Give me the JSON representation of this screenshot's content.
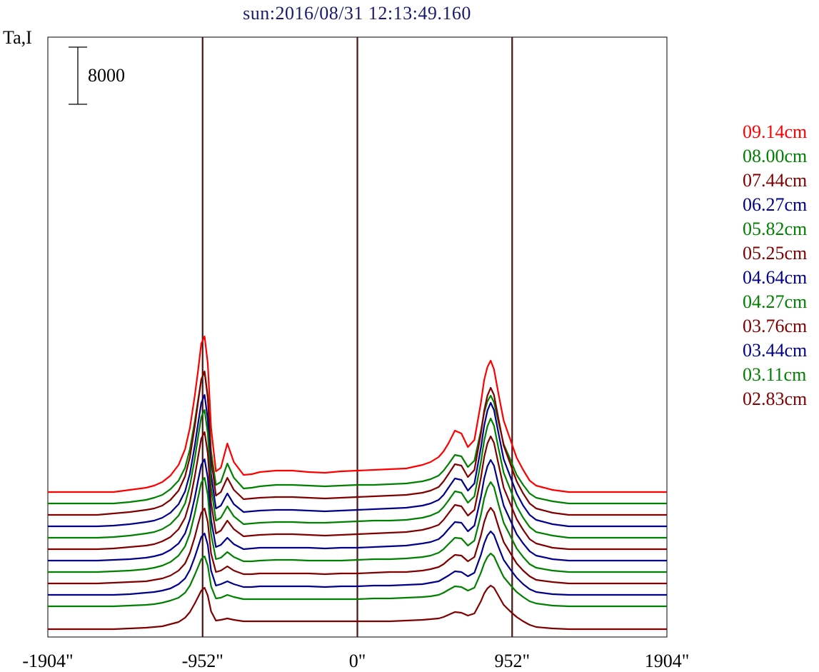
{
  "title": "sun:2016/08/31 12:13:49.160",
  "chart_data": {
    "type": "line",
    "title": "sun:2016/08/31 12:13:49.160",
    "ylabel": "Ta,I",
    "xlabel": "",
    "x_ticks": [
      "-1904\"",
      "-952\"",
      "0\"",
      "952\"",
      "1904\""
    ],
    "x_tick_values": [
      -1904,
      -952,
      0,
      952,
      1904
    ],
    "xlim": [
      -1904,
      1904
    ],
    "vertical_markers": [
      -952,
      0,
      952
    ],
    "scale_bar": {
      "label": "8000",
      "value": 8000
    },
    "x": [
      -1904,
      -1800,
      -1700,
      -1600,
      -1500,
      -1400,
      -1300,
      -1250,
      -1200,
      -1150,
      -1100,
      -1060,
      -1030,
      -1000,
      -980,
      -960,
      -940,
      -920,
      -900,
      -870,
      -840,
      -800,
      -760,
      -700,
      -650,
      -600,
      -500,
      -400,
      -300,
      -200,
      -100,
      0,
      100,
      200,
      300,
      400,
      450,
      500,
      530,
      560,
      600,
      640,
      680,
      720,
      760,
      780,
      800,
      820,
      840,
      870,
      900,
      940,
      980,
      1020,
      1060,
      1100,
      1200,
      1300,
      1400,
      1500,
      1600,
      1700,
      1800,
      1904
    ],
    "series": [
      {
        "name": "09.14cm",
        "color": "#ff0000",
        "offset": 19200,
        "values": [
          0,
          0,
          0,
          0,
          0,
          300,
          600,
          900,
          1400,
          2300,
          3800,
          6000,
          9000,
          13500,
          17000,
          20800,
          21800,
          18000,
          9000,
          2900,
          3400,
          6800,
          4200,
          2400,
          2500,
          2800,
          3000,
          3000,
          2800,
          2700,
          2900,
          3000,
          3100,
          3200,
          3300,
          3800,
          4200,
          4900,
          5700,
          6800,
          8600,
          8200,
          6300,
          7300,
          12500,
          15700,
          17500,
          18400,
          17200,
          13500,
          10000,
          7400,
          4800,
          3100,
          1600,
          900,
          300,
          0,
          0,
          0,
          0,
          0,
          0,
          0
        ]
      },
      {
        "name": "08.00cm",
        "color": "#008000",
        "offset": 17600,
        "values": [
          0,
          0,
          0,
          0,
          0,
          200,
          500,
          800,
          1200,
          2000,
          3200,
          5000,
          7600,
          11500,
          14500,
          17300,
          18400,
          15000,
          7300,
          2600,
          3000,
          5600,
          3600,
          2100,
          2200,
          2400,
          2600,
          2600,
          2500,
          2400,
          2500,
          2600,
          2600,
          2700,
          2800,
          3100,
          3400,
          3900,
          4600,
          5500,
          6800,
          6600,
          5100,
          6000,
          10200,
          12700,
          14300,
          15100,
          14200,
          11200,
          8300,
          6200,
          4000,
          2600,
          1400,
          800,
          300,
          0,
          0,
          0,
          0,
          0,
          0,
          0
        ]
      },
      {
        "name": "07.44cm",
        "color": "#800000",
        "offset": 16000,
        "values": [
          0,
          0,
          0,
          0,
          200,
          400,
          700,
          900,
          1300,
          2100,
          3400,
          5400,
          8100,
          12400,
          15800,
          19000,
          20100,
          16400,
          8000,
          2700,
          3200,
          5200,
          3500,
          2200,
          2300,
          2400,
          2500,
          2500,
          2400,
          2300,
          2400,
          2500,
          2600,
          2700,
          2800,
          3100,
          3400,
          3900,
          4700,
          5700,
          7100,
          6900,
          5300,
          6300,
          11400,
          14600,
          16700,
          17800,
          16800,
          13200,
          9700,
          7200,
          4700,
          3000,
          1600,
          900,
          300,
          0,
          0,
          0,
          0,
          0,
          0,
          0
        ]
      },
      {
        "name": "06.27cm",
        "color": "#00008b",
        "offset": 14400,
        "values": [
          0,
          0,
          0,
          0,
          100,
          300,
          600,
          800,
          1200,
          1900,
          3100,
          4900,
          7400,
          11300,
          14400,
          17300,
          18400,
          15000,
          7300,
          2500,
          2900,
          4600,
          3100,
          2000,
          2100,
          2200,
          2300,
          2300,
          2200,
          2100,
          2200,
          2300,
          2400,
          2500,
          2600,
          2900,
          3200,
          3700,
          4400,
          5400,
          6700,
          6500,
          5000,
          6000,
          11000,
          14100,
          16200,
          17300,
          16300,
          12800,
          9400,
          7000,
          4600,
          2900,
          1600,
          900,
          300,
          0,
          0,
          0,
          0,
          0,
          0,
          0
        ]
      },
      {
        "name": "05.82cm",
        "color": "#008000",
        "offset": 12800,
        "values": [
          0,
          0,
          0,
          0,
          100,
          300,
          600,
          800,
          1200,
          1900,
          3100,
          4800,
          7300,
          11100,
          14100,
          16900,
          17900,
          14600,
          7100,
          2400,
          2800,
          4400,
          3000,
          1900,
          2000,
          2100,
          2200,
          2200,
          2100,
          2100,
          2200,
          2300,
          2400,
          2400,
          2500,
          2800,
          3100,
          3600,
          4300,
          5200,
          6500,
          6300,
          4900,
          5800,
          10600,
          13600,
          15600,
          16700,
          15700,
          12300,
          9100,
          6800,
          4400,
          2800,
          1500,
          800,
          300,
          0,
          0,
          0,
          0,
          0,
          0,
          0
        ]
      },
      {
        "name": "05.25cm",
        "color": "#800000",
        "offset": 11200,
        "values": [
          0,
          0,
          0,
          0,
          100,
          300,
          500,
          700,
          1100,
          1700,
          2800,
          4400,
          6700,
          10200,
          12900,
          15500,
          16400,
          13400,
          6500,
          2200,
          2600,
          4000,
          2800,
          1800,
          1900,
          2000,
          2100,
          2100,
          2000,
          1900,
          2000,
          2100,
          2200,
          2300,
          2400,
          2700,
          3000,
          3400,
          4100,
          5000,
          6200,
          6000,
          4700,
          5500,
          10000,
          12900,
          14800,
          15800,
          14900,
          11700,
          8600,
          6400,
          4200,
          2700,
          1400,
          800,
          200,
          0,
          0,
          0,
          0,
          0,
          0,
          0
        ]
      },
      {
        "name": "04.64cm",
        "color": "#00008b",
        "offset": 9600,
        "values": [
          0,
          0,
          0,
          0,
          100,
          200,
          400,
          600,
          900,
          1500,
          2400,
          3800,
          5800,
          8800,
          11200,
          13400,
          14200,
          11600,
          5700,
          1900,
          2200,
          3200,
          2300,
          1600,
          1700,
          1800,
          1800,
          1800,
          1800,
          1700,
          1800,
          1800,
          1900,
          2000,
          2100,
          2400,
          2600,
          3000,
          3600,
          4400,
          5400,
          5300,
          4100,
          4900,
          8900,
          11500,
          13200,
          14100,
          13300,
          10400,
          7700,
          5700,
          3700,
          2400,
          1300,
          700,
          200,
          0,
          0,
          0,
          0,
          0,
          0,
          0
        ]
      },
      {
        "name": "04.27cm",
        "color": "#008000",
        "offset": 8000,
        "values": [
          0,
          0,
          0,
          0,
          100,
          200,
          400,
          600,
          900,
          1400,
          2300,
          3600,
          5400,
          8200,
          10400,
          12500,
          13200,
          10800,
          5300,
          1800,
          2000,
          2800,
          2100,
          1500,
          1500,
          1600,
          1700,
          1700,
          1600,
          1600,
          1600,
          1700,
          1800,
          1800,
          1900,
          2100,
          2300,
          2700,
          3200,
          3900,
          4800,
          4700,
          3700,
          4400,
          8000,
          10300,
          11800,
          12600,
          11900,
          9300,
          6900,
          5100,
          3300,
          2100,
          1100,
          600,
          200,
          0,
          0,
          0,
          0,
          0,
          0,
          0
        ]
      },
      {
        "name": "03.76cm",
        "color": "#800000",
        "offset": 6400,
        "values": [
          0,
          0,
          0,
          0,
          100,
          200,
          300,
          500,
          700,
          1100,
          1800,
          2800,
          4300,
          6500,
          8300,
          9900,
          10500,
          8600,
          4200,
          1600,
          1800,
          2400,
          1800,
          1300,
          1300,
          1400,
          1400,
          1400,
          1400,
          1300,
          1400,
          1400,
          1500,
          1600,
          1600,
          1800,
          2000,
          2300,
          2700,
          3300,
          4000,
          3900,
          3100,
          3700,
          6700,
          8600,
          9900,
          10600,
          10000,
          7800,
          5800,
          4300,
          2800,
          1800,
          1000,
          500,
          200,
          0,
          0,
          0,
          0,
          0,
          0,
          0
        ]
      },
      {
        "name": "03.44cm",
        "color": "#00008b",
        "offset": 4800,
        "values": [
          0,
          0,
          0,
          0,
          0,
          100,
          300,
          400,
          600,
          900,
          1500,
          2300,
          3500,
          5300,
          6700,
          8100,
          8600,
          7000,
          3400,
          1300,
          1500,
          1900,
          1500,
          1100,
          1100,
          1200,
          1200,
          1200,
          1200,
          1100,
          1200,
          1200,
          1300,
          1300,
          1400,
          1500,
          1700,
          1900,
          2300,
          2700,
          3300,
          3200,
          2600,
          3100,
          5600,
          7200,
          8300,
          8900,
          8400,
          6600,
          4900,
          3600,
          2400,
          1500,
          800,
          400,
          100,
          0,
          0,
          0,
          0,
          0,
          0,
          0
        ]
      },
      {
        "name": "03.11cm",
        "color": "#008000",
        "offset": 3200,
        "values": [
          0,
          0,
          0,
          0,
          0,
          100,
          200,
          300,
          500,
          800,
          1200,
          1900,
          2900,
          4400,
          5500,
          6600,
          7000,
          5700,
          2800,
          1100,
          1200,
          1600,
          1300,
          1000,
          1000,
          1000,
          1000,
          1000,
          1000,
          1000,
          1000,
          1000,
          1100,
          1100,
          1200,
          1300,
          1400,
          1600,
          1900,
          2300,
          2800,
          2700,
          2200,
          2600,
          4700,
          6000,
          6900,
          7400,
          7000,
          5500,
          4100,
          3000,
          2000,
          1300,
          700,
          400,
          100,
          0,
          0,
          0,
          0,
          0,
          0,
          0
        ]
      },
      {
        "name": "02.83cm",
        "color": "#800000",
        "offset": 0,
        "values": [
          0,
          0,
          0,
          0,
          0,
          100,
          200,
          300,
          400,
          700,
          1000,
          1600,
          2400,
          3600,
          4500,
          5400,
          5800,
          4700,
          2500,
          1200,
          1300,
          1500,
          1300,
          1100,
          1100,
          1100,
          1100,
          1100,
          1100,
          1100,
          1100,
          1100,
          1100,
          1100,
          1200,
          1300,
          1400,
          1500,
          1700,
          2000,
          2400,
          2300,
          1900,
          2200,
          3900,
          5000,
          5700,
          6100,
          5800,
          4600,
          3400,
          2500,
          1700,
          1100,
          600,
          300,
          100,
          0,
          0,
          0,
          0,
          0,
          0,
          0
        ]
      }
    ],
    "grid": false,
    "legend_position": "right"
  }
}
